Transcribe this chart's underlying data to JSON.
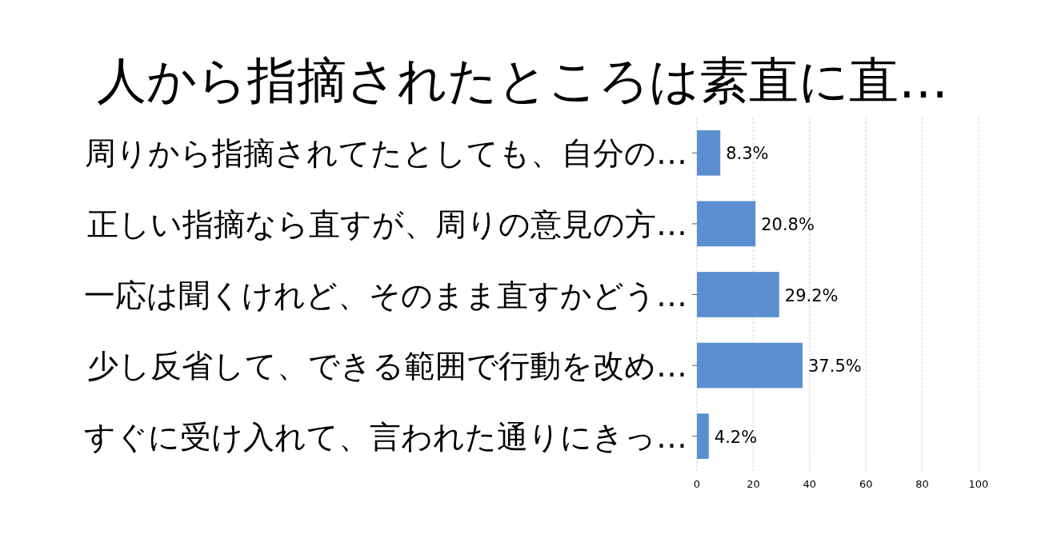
{
  "chart_data": {
    "type": "bar",
    "orientation": "horizontal",
    "title": "人から指摘されたところは素直に直…",
    "categories": [
      "周りから指摘されてたとしても、自分の…",
      "正しい指摘なら直すが、周りの意見の方…",
      "一応は聞くけれど、そのまま直すかどう…",
      "少し反省して、できる範囲で行動を改め…",
      "すぐに受け入れて、言われた通りにきっ…"
    ],
    "values": [
      8.3,
      20.8,
      29.2,
      37.5,
      4.2
    ],
    "value_labels": [
      "8.3%",
      "20.8%",
      "29.2%",
      "37.5%",
      "4.2%"
    ],
    "color": "#5b8fd0",
    "xlim": [
      0,
      100
    ],
    "xticks": [
      0,
      20,
      40,
      60,
      80,
      100
    ],
    "grid": "x"
  }
}
